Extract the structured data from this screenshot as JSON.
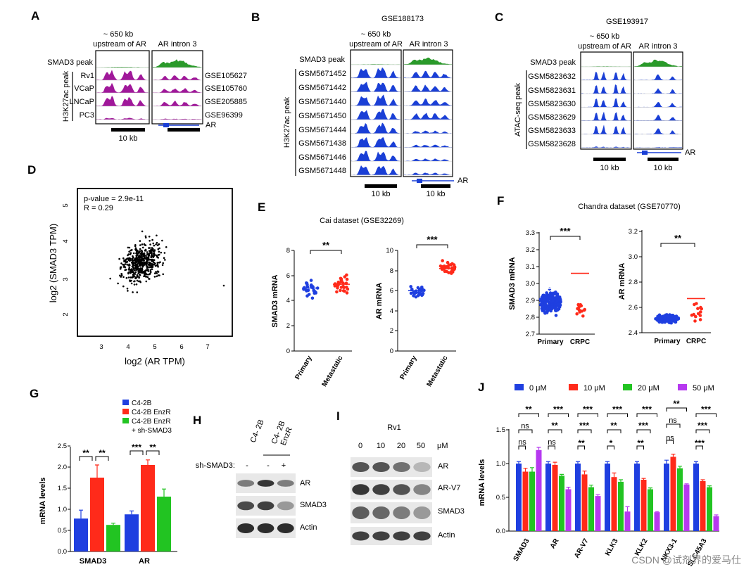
{
  "panelA": {
    "letter": "A",
    "col1": "~ 650 kb",
    "col1b": "upstream of AR",
    "col2": "AR intron 3",
    "peak": "SMAD3 peak",
    "group": "H3K27ac peak",
    "tracks": [
      "Rv1",
      "VCaP",
      "LNCaP",
      "PC3"
    ],
    "gse": [
      "GSE105627",
      "GSE105760",
      "GSE205885",
      "GSE96399"
    ],
    "scale": "10 kb",
    "gene": "AR"
  },
  "panelB": {
    "letter": "B",
    "title": "GSE188173",
    "col1": "~ 650 kb",
    "col1b": "upstream of AR",
    "col2": "AR intron 3",
    "peak": "SMAD3 peak",
    "group": "H3K27ac peak",
    "tracks": [
      "GSM5671452",
      "GSM5671442",
      "GSM5671440",
      "GSM5671450",
      "GSM5671444",
      "GSM5671438",
      "GSM5671446",
      "GSM5671448"
    ],
    "scale1": "10 kb",
    "scale2": "10 kb",
    "gene": "AR"
  },
  "panelC": {
    "letter": "C",
    "title": "GSE193917",
    "col1": "~ 650 kb",
    "col1b": "upstream of AR",
    "col2": "AR intron 3",
    "peak": "SMAD3 peak",
    "group": "ATAC-seq peak",
    "tracks": [
      "GSM5823632",
      "GSM5823631",
      "GSM5823630",
      "GSM5823629",
      "GSM5823633",
      "GSM5823628"
    ],
    "scale1": "10 kb",
    "scale2": "10 kb",
    "gene": "AR"
  },
  "panelD": {
    "letter": "D",
    "pvalue": "p-value = 2.9e-11",
    "r": "R = 0.29",
    "xlabel": "log2 (AR TPM)",
    "ylabel": "log2 (SMAD3 TPM)",
    "xticks": [
      "3",
      "4",
      "5",
      "6",
      "7"
    ],
    "yticks": [
      "2",
      "3",
      "4",
      "5"
    ]
  },
  "panelE": {
    "letter": "E",
    "title": "Cai dataset (GSE32269)",
    "left": {
      "ylabel": "SMAD3 mRNA",
      "yticks": [
        "0",
        "2",
        "4",
        "6",
        "8"
      ],
      "sig": "**",
      "cats": [
        "Primary",
        "Metastatic"
      ]
    },
    "right": {
      "ylabel": "AR mRNA",
      "yticks": [
        "0",
        "2",
        "4",
        "6",
        "8",
        "10"
      ],
      "sig": "***",
      "cats": [
        "Primary",
        "Metastatic"
      ]
    }
  },
  "panelF": {
    "letter": "F",
    "title": "Chandra dataset (GSE70770)",
    "left": {
      "ylabel": "SMAD3 mRNA",
      "yticks": [
        "2.7",
        "2.8",
        "2.9",
        "3.0",
        "3.1",
        "3.2",
        "3.3"
      ],
      "sig": "***",
      "cats": [
        "Primary",
        "CRPC"
      ]
    },
    "right": {
      "ylabel": "AR mRNA",
      "yticks": [
        "2.4",
        "2.6",
        "2.8",
        "3.0",
        "3.2"
      ],
      "sig": "**",
      "cats": [
        "Primary",
        "CRPC"
      ]
    }
  },
  "panelG": {
    "letter": "G",
    "legend": [
      "C4-2B",
      "C4-2B EnzR",
      "C4-2B EnzR",
      "+ sh-SMAD3"
    ],
    "ylabel": "mRNA levels",
    "yticks": [
      "0.0",
      "0.5",
      "1.0",
      "1.5",
      "2.0",
      "2.5"
    ],
    "groups": [
      "SMAD3",
      "AR"
    ],
    "sig": [
      "**",
      "**",
      "***",
      "**"
    ]
  },
  "panelH": {
    "letter": "H",
    "lane1": "C4- 2B",
    "lane2": "C4- 2B",
    "lane2b": "EnzR",
    "shlabel": "sh-SMAD3:",
    "signs": [
      "-",
      "-",
      "+"
    ],
    "bands": [
      "AR",
      "SMAD3",
      "Actin"
    ]
  },
  "panelI": {
    "letter": "I",
    "cell": "Rv1",
    "doses": [
      "0",
      "10",
      "20",
      "50"
    ],
    "unit": "μM",
    "bands": [
      "AR",
      "AR-V7",
      "SMAD3",
      "Actin"
    ]
  },
  "panelJ": {
    "letter": "J",
    "legend": [
      "0 μM",
      "10 μM",
      "20 μM",
      "50 μM"
    ],
    "ylabel": "mRNA levels",
    "yticks": [
      "0.0",
      "0.5",
      "1.0",
      "1.5"
    ],
    "genes": [
      "SMAD3",
      "AR",
      "AR-V7",
      "KLK3",
      "KLK2",
      "NKX3-1",
      "SLC45A3"
    ],
    "sigTop": [
      "**",
      "***",
      "***",
      "***",
      "***",
      "**",
      "***"
    ],
    "sigMid": [
      "ns",
      "**",
      "***",
      "**",
      "***",
      "ns",
      "***"
    ],
    "sigLow": [
      "ns",
      "ns",
      "**",
      "*",
      "**",
      "ns",
      "***"
    ]
  },
  "colors": {
    "blue": "#1f3fe0",
    "red": "#ff2a1a",
    "green": "#22c422",
    "purple": "#b638f0",
    "magenta": "#a0189a",
    "peakGreen": "#2a9a2a",
    "trackBlue": "#1a3fd6"
  },
  "chart_data": [
    {
      "type": "bar",
      "title": "",
      "ylabel": "mRNA levels",
      "ylim": [
        0,
        2.5
      ],
      "categories": [
        "SMAD3",
        "AR"
      ],
      "series": [
        {
          "name": "C4-2B",
          "values": [
            0.78,
            0.88
          ]
        },
        {
          "name": "C4-2B EnzR",
          "values": [
            1.75,
            2.05
          ]
        },
        {
          "name": "C4-2B EnzR + sh-SMAD3",
          "values": [
            0.63,
            1.3
          ]
        }
      ]
    },
    {
      "type": "bar",
      "title": "",
      "ylabel": "mRNA levels",
      "ylim": [
        0,
        1.5
      ],
      "categories": [
        "SMAD3",
        "AR",
        "AR-V7",
        "KLK3",
        "KLK2",
        "NKX3-1",
        "SLC45A3"
      ],
      "series": [
        {
          "name": "0 μM",
          "values": [
            1.0,
            1.0,
            1.0,
            1.0,
            1.0,
            1.0,
            1.0
          ]
        },
        {
          "name": "10 μM",
          "values": [
            0.88,
            0.98,
            0.84,
            0.8,
            0.76,
            1.1,
            0.74
          ]
        },
        {
          "name": "20 μM",
          "values": [
            0.88,
            0.82,
            0.65,
            0.73,
            0.62,
            0.93,
            0.65
          ]
        },
        {
          "name": "50 μM",
          "values": [
            1.2,
            0.62,
            0.52,
            0.29,
            0.28,
            0.69,
            0.22
          ]
        }
      ]
    }
  ],
  "watermark": "CSDN @试剂界的爱马仕"
}
